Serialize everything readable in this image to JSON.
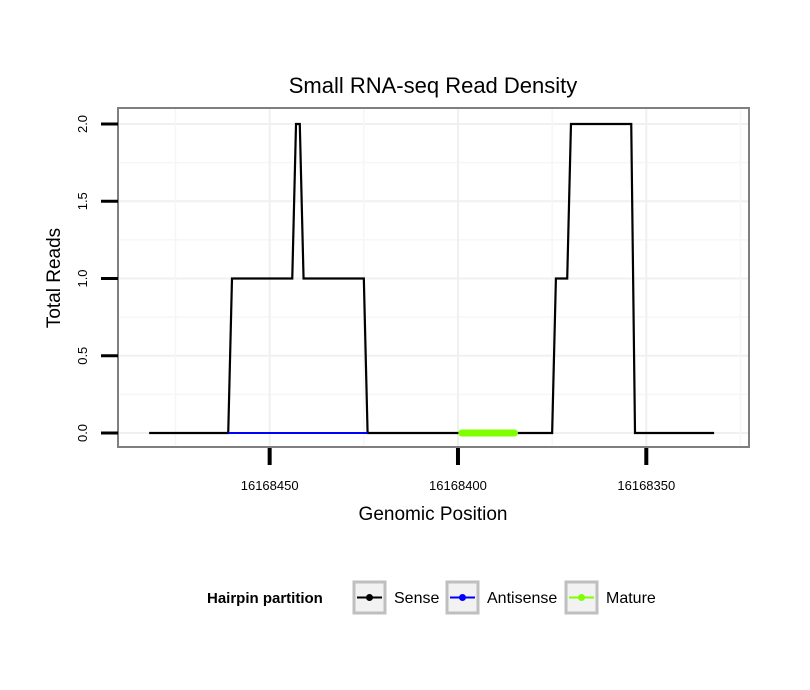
{
  "chart_data": {
    "type": "line",
    "title": "Small RNA-seq Read Density",
    "xlabel": "Genomic Position",
    "ylabel": "Total Reads",
    "x_reversed": true,
    "xlim": [
      16168490,
      16168323
    ],
    "ylim": [
      0,
      2
    ],
    "x_ticks": [
      16168450,
      16168400,
      16168350
    ],
    "x_tick_labels": [
      "16168450",
      "16168400",
      "16168350"
    ],
    "y_ticks": [
      0,
      0.5,
      1,
      1.5,
      2
    ],
    "y_tick_labels": [
      "0.0",
      "0.5",
      "1.0",
      "1.5",
      "2.0"
    ],
    "grid": true,
    "legend": {
      "title": "Hairpin partition",
      "position": "bottom",
      "entries": [
        {
          "name": "Sense",
          "color": "#000000"
        },
        {
          "name": "Antisense",
          "color": "#0000ff"
        },
        {
          "name": "Mature",
          "color": "#7fff00"
        }
      ]
    },
    "series": [
      {
        "name": "Sense",
        "color": "#000000",
        "x": [
          16168482,
          16168461,
          16168460,
          16168444,
          16168443,
          16168442,
          16168441,
          16168425,
          16168424,
          16168375,
          16168374,
          16168371,
          16168370,
          16168354,
          16168353,
          16168332
        ],
        "y": [
          0,
          0,
          1,
          1,
          2,
          2,
          1,
          1,
          0,
          0,
          1,
          1,
          2,
          2,
          0,
          0
        ]
      },
      {
        "name": "Antisense",
        "color": "#0000ff",
        "x": [
          16168461,
          16168424,
          16168375,
          16168353
        ],
        "y": [
          0,
          0,
          null,
          0
        ]
      },
      {
        "name": "Mature",
        "color": "#7fff00",
        "x": [
          16168399,
          16168385
        ],
        "y": [
          0,
          0
        ]
      }
    ]
  }
}
